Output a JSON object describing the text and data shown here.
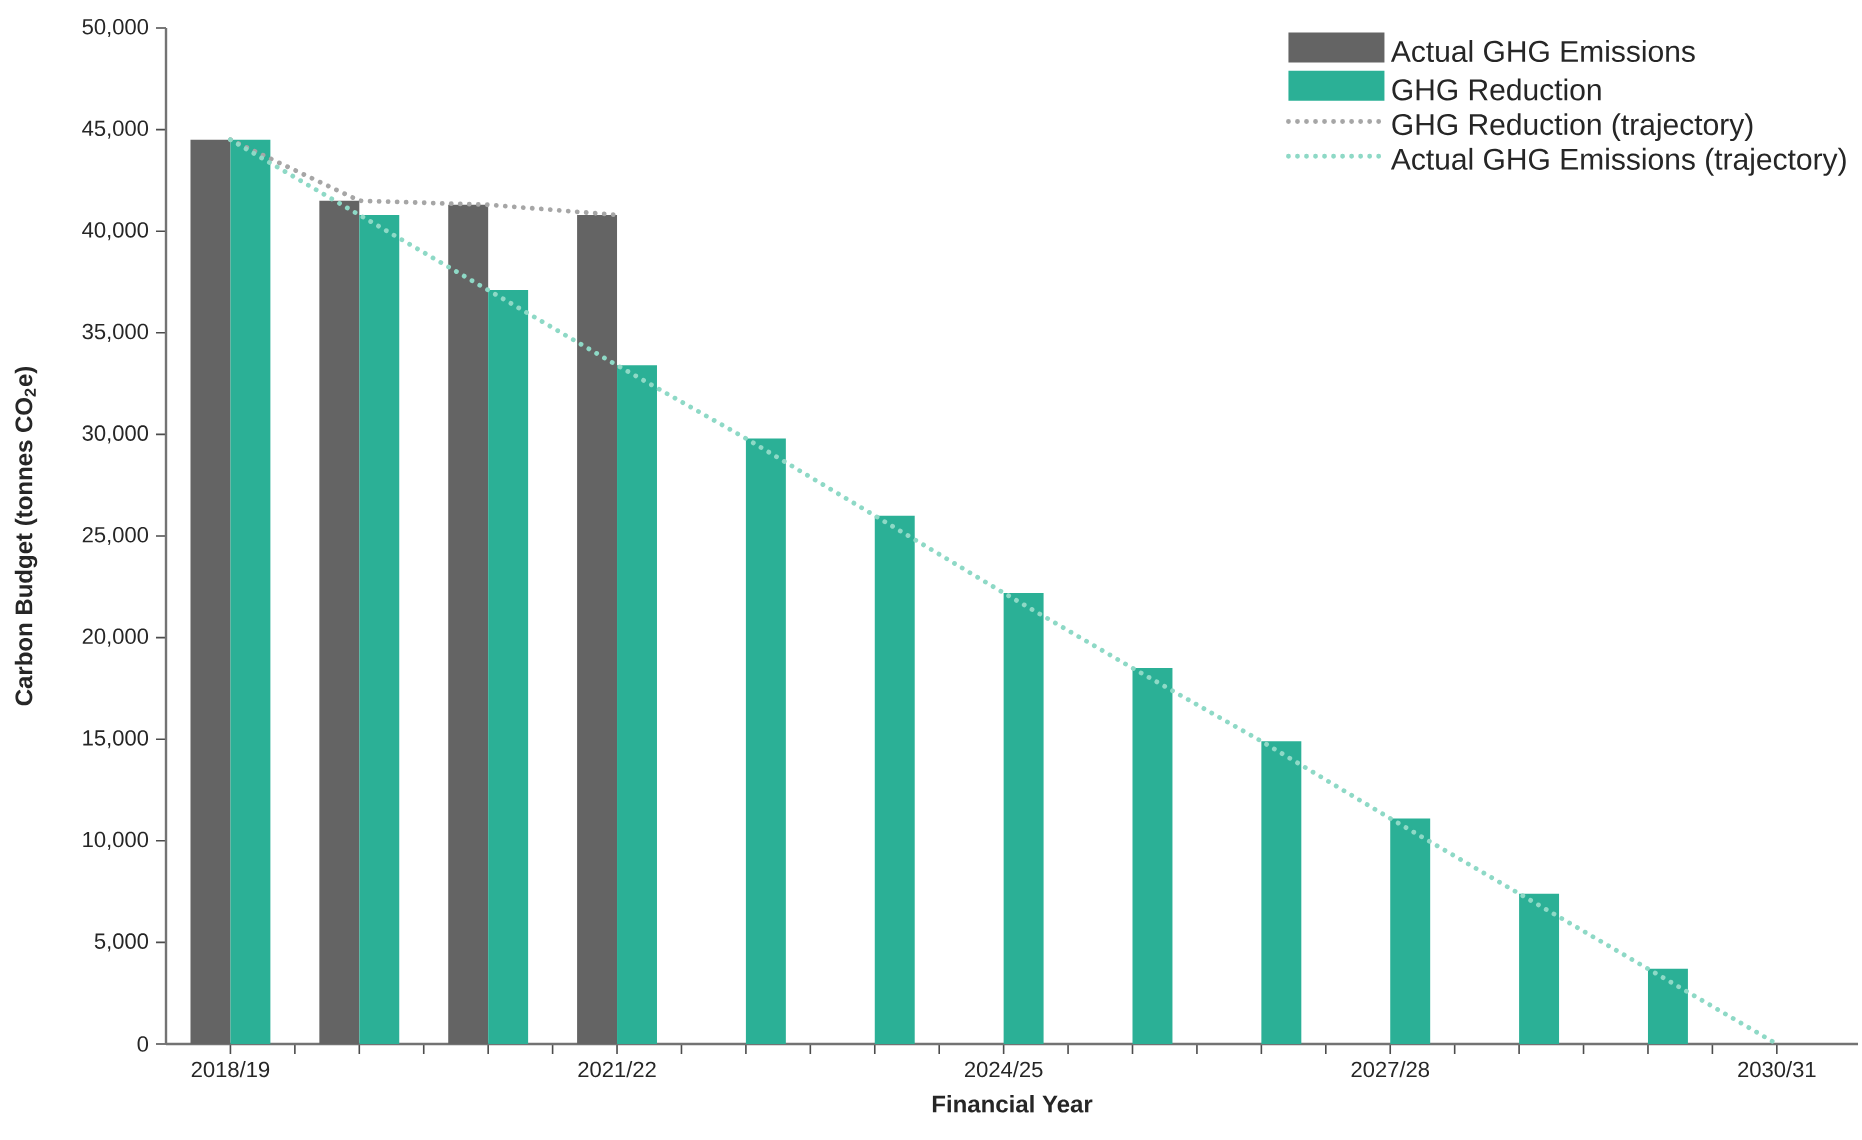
{
  "chart_data": {
    "type": "bar",
    "xlabel": "Financial Year",
    "ylabel": "Carbon Budget (tonnes CO$_{2}$e)",
    "categories": [
      "2018/19",
      null,
      null,
      "2021/22",
      null,
      null,
      "2024/25",
      null,
      null,
      "2027/28",
      null,
      null,
      "2030/31"
    ],
    "series": [
      {
        "name": "Actual GHG Emissions",
        "color": "#646464",
        "values": [
          44500,
          41500,
          41300,
          40800,
          null,
          null,
          null,
          null,
          null,
          null,
          null,
          null,
          null
        ]
      },
      {
        "name": "GHG Reduction",
        "color": "#2bb096",
        "values": [
          44500,
          40800,
          37100,
          33400,
          29800,
          26000,
          22200,
          18500,
          14900,
          11100,
          7400,
          3700,
          null
        ]
      },
      {
        "name": "GHG Reduction (trajectory)",
        "type": "line",
        "line_style": "dotted",
        "marker": "none",
        "color": "#a6a6a6",
        "values": [
          44500,
          41500,
          41300,
          40800,
          null,
          null,
          null,
          null,
          null,
          null,
          null,
          null,
          null
        ]
      },
      {
        "name": "Actual GHG Emissions (trajectory)",
        "type": "line",
        "line_style": "dotted",
        "marker": "none",
        "color": "#8ed9c6",
        "values": [
          44500,
          40800,
          37100,
          33400,
          29800,
          26000,
          22200,
          18500,
          14900,
          11100,
          7400,
          3700,
          0
        ]
      }
    ],
    "ylim": [
      0,
      50000
    ],
    "yticks": [
      0,
      {
        "value": 5000,
        "label": "5,000"
      },
      {
        "value": 10000,
        "label": "10,000"
      },
      {
        "value": 15000,
        "label": "15,000"
      },
      {
        "value": 20000,
        "label": "20,000"
      },
      {
        "value": 25000,
        "label": "25,000"
      },
      {
        "value": 30000,
        "label": "30,000"
      },
      {
        "value": 35000,
        "label": "35,000"
      },
      {
        "value": 40000,
        "label": "40,000"
      },
      {
        "value": 45000,
        "label": "45,000"
      },
      {
        "value": 50000,
        "label": "50,000"
      }
    ],
    "grid": false,
    "legend": "top right"
  }
}
